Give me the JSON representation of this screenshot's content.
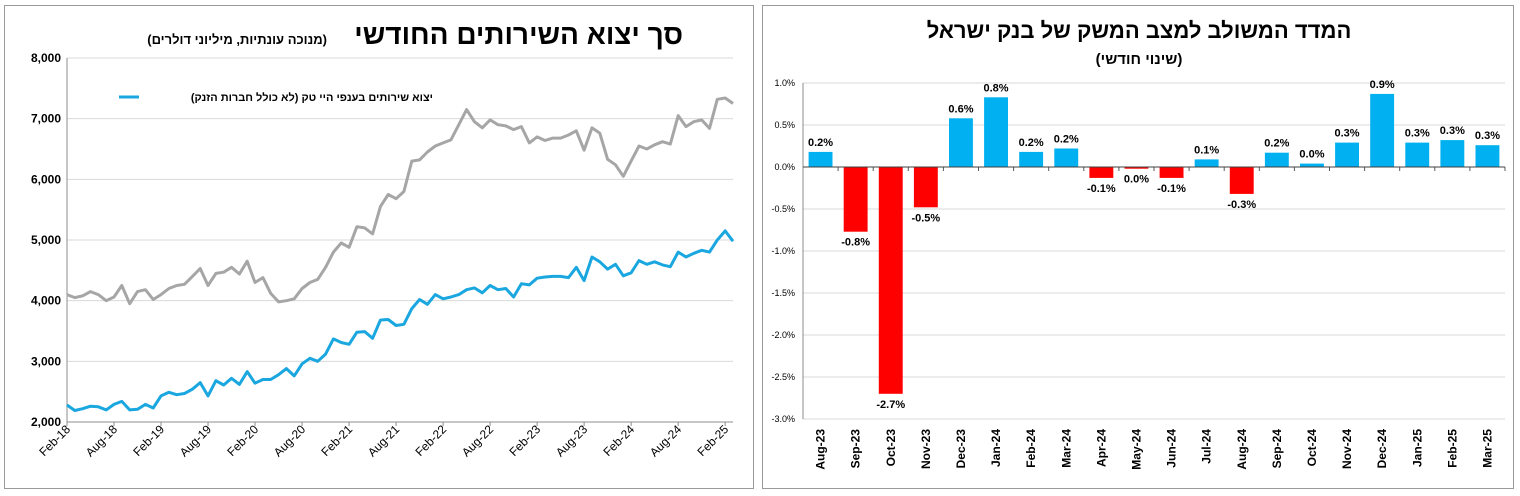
{
  "left_chart": {
    "title": "סך יצוא השירותים החודשי",
    "subtitle": "(מנוכה עונתיות, מיליוני דולרים)",
    "legend_label": "יצוא שירותים בענפי היי טק (לא כולל חברות הזנק)",
    "series_color": "#1aa7e0",
    "total_color": "#a6a6a6"
  },
  "right_chart": {
    "title": "המדד המשולב למצב המשק של בנק ישראל",
    "subtitle": "(שינוי חודשי)",
    "positive_color": "#00b0f0",
    "negative_color": "#ff0000"
  },
  "chart_data": [
    {
      "type": "line",
      "title": "סך יצוא השירותים החודשי",
      "subtitle": "(מנוכה עונתיות, מיליוני דולרים)",
      "ylim": [
        2000,
        8000
      ],
      "yticks": [
        "2,000",
        "3,000",
        "4,000",
        "5,000",
        "6,000",
        "7,000",
        "8,000"
      ],
      "xticks": [
        "Feb-18",
        "Aug-18",
        "Feb-19",
        "Aug-19",
        "Feb-20",
        "Aug-20",
        "Feb-21",
        "Aug-21",
        "Feb-22",
        "Aug-22",
        "Feb-23",
        "Aug-23",
        "Feb-24",
        "Aug-24",
        "Feb-25"
      ],
      "x_start": "Feb-18",
      "x_end": "Mar-25",
      "grid": true,
      "legend_position": "top-left",
      "series": [
        {
          "name": "",
          "color": "#a6a6a6",
          "values": [
            4100,
            4050,
            4080,
            4150,
            4100,
            4000,
            4060,
            4250,
            3950,
            4150,
            4180,
            4020,
            4100,
            4200,
            4250,
            4270,
            4400,
            4530,
            4250,
            4450,
            4470,
            4550,
            4440,
            4650,
            4300,
            4380,
            4120,
            3980,
            4000,
            4030,
            4200,
            4300,
            4350,
            4550,
            4800,
            4950,
            4880,
            5220,
            5200,
            5100,
            5550,
            5750,
            5680,
            5800,
            6300,
            6320,
            6450,
            6550,
            6600,
            6650,
            6900,
            7150,
            6950,
            6850,
            6980,
            6900,
            6880,
            6820,
            6870,
            6600,
            6700,
            6640,
            6680,
            6680,
            6730,
            6800,
            6480,
            6850,
            6760,
            6330,
            6240,
            6050,
            6300,
            6550,
            6500,
            6570,
            6620,
            6580,
            7050,
            6870,
            6950,
            6980,
            6840,
            7320,
            7340,
            7250
          ]
        },
        {
          "name": "יצוא שירותים בענפי היי טק (לא כולל חברות הזנק)",
          "color": "#1aa7e0",
          "values": [
            2280,
            2190,
            2220,
            2260,
            2250,
            2200,
            2290,
            2340,
            2200,
            2210,
            2290,
            2230,
            2430,
            2490,
            2450,
            2470,
            2540,
            2650,
            2430,
            2680,
            2610,
            2720,
            2620,
            2830,
            2640,
            2700,
            2700,
            2780,
            2880,
            2760,
            2960,
            3050,
            3000,
            3120,
            3370,
            3310,
            3280,
            3480,
            3490,
            3380,
            3680,
            3690,
            3590,
            3610,
            3870,
            4020,
            3940,
            4100,
            4030,
            4060,
            4100,
            4180,
            4210,
            4130,
            4250,
            4180,
            4200,
            4060,
            4280,
            4260,
            4370,
            4390,
            4400,
            4400,
            4380,
            4550,
            4330,
            4720,
            4640,
            4520,
            4600,
            4410,
            4460,
            4660,
            4600,
            4640,
            4590,
            4560,
            4800,
            4720,
            4780,
            4830,
            4800,
            5000,
            5150,
            4980
          ]
        }
      ]
    },
    {
      "type": "bar",
      "title": "המדד המשולב למצב המשק של בנק ישראל",
      "subtitle": "(שינוי חודשי)",
      "categories": [
        "Aug-23",
        "Sep-23",
        "Oct-23",
        "Nov-23",
        "Dec-23",
        "Jan-24",
        "Feb-24",
        "Mar-24",
        "Apr-24",
        "May-24",
        "Jun-24",
        "Jul-24",
        "Aug-24",
        "Sep-24",
        "Oct-24",
        "Nov-24",
        "Dec-24",
        "Jan-25",
        "Feb-25",
        "Mar-25"
      ],
      "values": [
        0.18,
        -0.77,
        -2.7,
        -0.48,
        0.58,
        0.83,
        0.18,
        0.22,
        -0.13,
        -0.02,
        -0.13,
        0.09,
        -0.32,
        0.17,
        0.04,
        0.29,
        0.87,
        0.29,
        0.32,
        0.26
      ],
      "data_labels": [
        "0.2%",
        "-0.8%",
        "-2.7%",
        "-0.5%",
        "0.6%",
        "0.8%",
        "0.2%",
        "0.2%",
        "-0.1%",
        "0.0%",
        "-0.1%",
        "0.1%",
        "-0.3%",
        "0.2%",
        "0.0%",
        "0.3%",
        "0.9%",
        "0.3%",
        "0.3%",
        "0.3%"
      ],
      "ylim": [
        -3.0,
        1.0
      ],
      "yticks": [
        "1.0%",
        "0.5%",
        "0.0%",
        "-0.5%",
        "-1.0%",
        "-1.5%",
        "-2.0%",
        "-2.5%",
        "-3.0%"
      ],
      "grid": true
    }
  ]
}
